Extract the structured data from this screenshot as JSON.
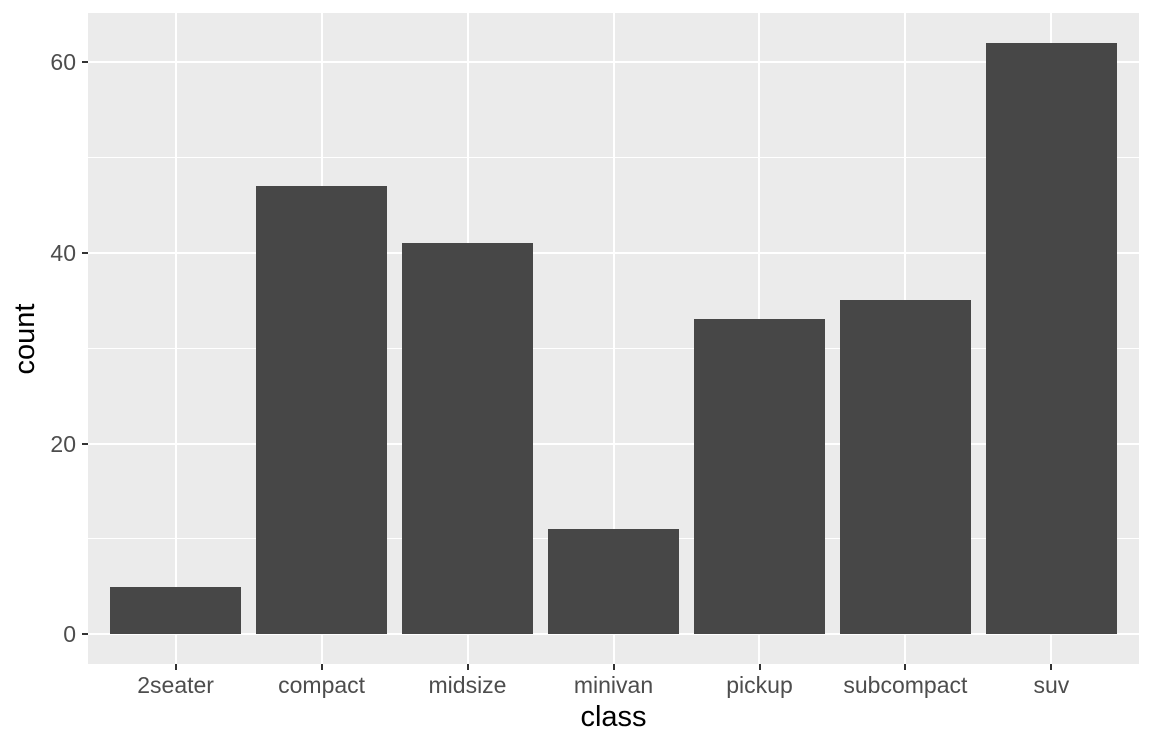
{
  "chart_data": {
    "type": "bar",
    "title": "",
    "xlabel": "class",
    "ylabel": "count",
    "categories": [
      "2seater",
      "compact",
      "midsize",
      "minivan",
      "pickup",
      "subcompact",
      "suv"
    ],
    "values": [
      5,
      47,
      41,
      11,
      33,
      35,
      62
    ],
    "y_ticks": [
      0,
      20,
      40,
      60
    ],
    "y_minor_ticks": [
      10,
      30,
      50
    ],
    "ylim": [
      -3.1,
      65.1
    ],
    "grid": "major-horizontal, minor-horizontal, major-vertical-at-category-centers",
    "legend": "none",
    "style": {
      "figure_bg": "#FFFFFF",
      "panel_bg": "#EBEBEB",
      "grid_color": "#FFFFFF",
      "bar_fill": "#474747",
      "tick_label_color": "#4D4D4D",
      "axis_title_color": "#000000",
      "tick_mark_color": "#333333"
    }
  }
}
